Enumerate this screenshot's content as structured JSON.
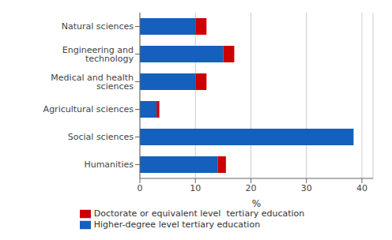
{
  "chart_data": {
    "type": "bar",
    "orientation": "horizontal",
    "stacked": true,
    "categories": [
      "Humanities",
      "Social sciences",
      "Agricultural sciences",
      "Medical and health sciences",
      "Engineering and technology",
      "Natural sciences"
    ],
    "series": [
      {
        "name": "Higher-degree level tertiary education",
        "color": "#1560BD",
        "values": [
          14.0,
          38.5,
          3.0,
          10.0,
          15.0,
          10.0
        ]
      },
      {
        "name": "Doctorate or equivalent level  tertiary education",
        "color": "#CC0000",
        "values": [
          1.5,
          0.0,
          0.5,
          2.0,
          2.0,
          2.0
        ]
      }
    ],
    "xlabel": "%",
    "xlim": [
      0,
      42
    ],
    "xticks": [
      0,
      10,
      20,
      30,
      40
    ],
    "grid": true,
    "legend": "bottom"
  }
}
